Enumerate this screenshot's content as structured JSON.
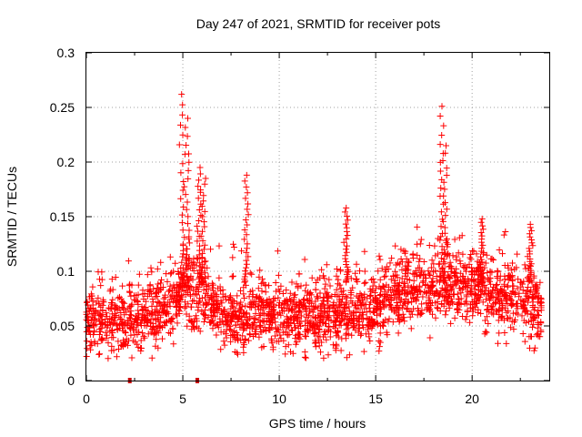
{
  "chart_data": {
    "type": "scatter",
    "title": "Day 247 of 2021, SRMTID for receiver pots",
    "xlabel": "GPS time / hours",
    "ylabel": "SRMTID / TECUs",
    "xlim": [
      0,
      24
    ],
    "ylim": [
      0,
      0.3
    ],
    "xticks": [
      0,
      5,
      10,
      15,
      20
    ],
    "xtick_labels": [
      "0",
      "5",
      "10",
      "15",
      "20"
    ],
    "yticks": [
      0,
      0.05,
      0.1,
      0.15,
      0.2,
      0.25,
      0.3
    ],
    "ytick_labels": [
      "0",
      "0.05",
      "0.1",
      "0.15",
      "0.2",
      "0.25",
      "0.3"
    ],
    "grid": true,
    "marker": "+",
    "color": "#ff0000",
    "axis_markers": [
      2.25,
      5.75
    ],
    "series": [
      {
        "name": "SRMTID",
        "n_points": 2400,
        "baseline_profile": [
          [
            0,
            0.055
          ],
          [
            2,
            0.055
          ],
          [
            3,
            0.058
          ],
          [
            4,
            0.065
          ],
          [
            5,
            0.085
          ],
          [
            6,
            0.08
          ],
          [
            7,
            0.06
          ],
          [
            10,
            0.058
          ],
          [
            13,
            0.062
          ],
          [
            15,
            0.065
          ],
          [
            16,
            0.082
          ],
          [
            18,
            0.085
          ],
          [
            20,
            0.085
          ],
          [
            22,
            0.075
          ],
          [
            23.6,
            0.065
          ]
        ],
        "peaks": [
          {
            "x": 5.0,
            "max": 0.262
          },
          {
            "x": 5.2,
            "max": 0.24
          },
          {
            "x": 5.85,
            "max": 0.195
          },
          {
            "x": 6.05,
            "max": 0.185
          },
          {
            "x": 8.3,
            "max": 0.188
          },
          {
            "x": 13.5,
            "max": 0.158
          },
          {
            "x": 18.4,
            "max": 0.251
          },
          {
            "x": 18.6,
            "max": 0.215
          },
          {
            "x": 20.5,
            "max": 0.148
          },
          {
            "x": 23.0,
            "max": 0.143
          }
        ]
      }
    ]
  }
}
